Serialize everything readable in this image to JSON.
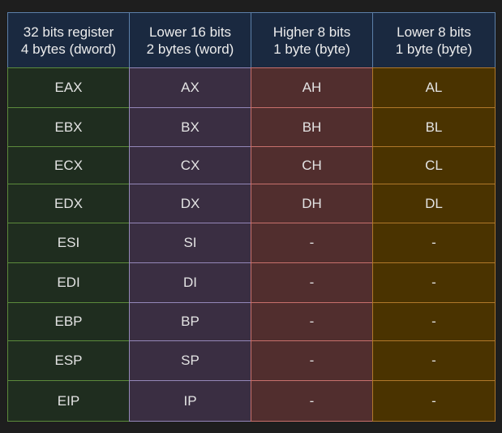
{
  "headers": [
    {
      "line1": "32 bits register",
      "line2": "4 bytes (dword)"
    },
    {
      "line1": "Lower 16 bits",
      "line2": "2 bytes (word)"
    },
    {
      "line1": "Higher 8 bits",
      "line2": "1 byte (byte)"
    },
    {
      "line1": "Lower 8 bits",
      "line2": "1 byte (byte)"
    }
  ],
  "rows": [
    [
      "EAX",
      "AX",
      "AH",
      "AL"
    ],
    [
      "EBX",
      "BX",
      "BH",
      "BL"
    ],
    [
      "ECX",
      "CX",
      "CH",
      "CL"
    ],
    [
      "EDX",
      "DX",
      "DH",
      "DL"
    ],
    [
      "ESI",
      "SI",
      "-",
      "-"
    ],
    [
      "EDI",
      "DI",
      "-",
      "-"
    ],
    [
      "EBP",
      "BP",
      "-",
      "-"
    ],
    [
      "ESP",
      "SP",
      "-",
      "-"
    ],
    [
      "EIP",
      "IP",
      "-",
      "-"
    ]
  ],
  "colors": {
    "background": "#1e1e1e",
    "header_fill": "#1a2940",
    "header_stroke": "#5c7fa8",
    "col32_fill": "#1f2d1f",
    "col32_stroke": "#5c8a3c",
    "col16_fill": "#3a2e42",
    "col16_stroke": "#9487b8",
    "colH8_fill": "#512e2e",
    "colH8_stroke": "#c7706c",
    "colL8_fill": "#4a3300",
    "colL8_stroke": "#b0782a"
  }
}
